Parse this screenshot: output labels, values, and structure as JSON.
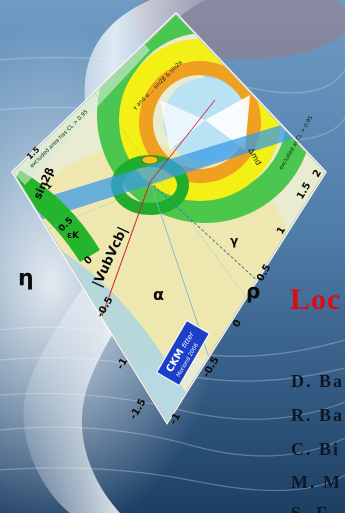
{
  "slide": {
    "title": "Loc",
    "authors": [
      "D. Ba",
      "R. Ba",
      "C. Bi",
      "M. M",
      "S. F"
    ]
  },
  "figure": {
    "eta_label": "η",
    "rho_label": "ρ",
    "alpha_label": "α",
    "gamma_label": "γ",
    "vub_label": "|VubVcb|",
    "sin2b_label": "sin2β",
    "eps_label": "εK",
    "dmd_label": "Δmd",
    "excluded_label": "excluded area has CL > 0.95",
    "excluded_label2": "excluded at CL > 0.95",
    "upper_label": "γ and α ... sin2β & sin2α",
    "ckm_badge_line1": "CKM",
    "ckm_badge_line2": "fitter",
    "ckm_badge_line3": "Moriond 2006",
    "eta_ticks": [
      "1.5",
      "1",
      "0.5",
      "0",
      "-0.5",
      "-1",
      "-1.5"
    ],
    "rho_ticks": [
      "2",
      "1.5",
      "1",
      "0.5",
      "0",
      "-0.5",
      "-1"
    ]
  }
}
